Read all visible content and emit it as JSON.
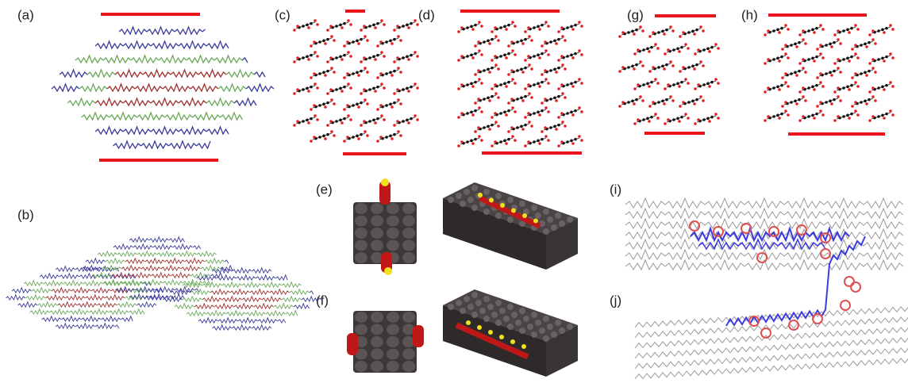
{
  "panels": [
    {
      "label": "(a)"
    },
    {
      "label": "(b)"
    },
    {
      "label": "(c)"
    },
    {
      "label": "(d)"
    },
    {
      "label": "(g)"
    },
    {
      "label": "(h)"
    },
    {
      "label": "(e)"
    },
    {
      "label": "(f)"
    },
    {
      "label": "(i)"
    },
    {
      "label": "(j)"
    }
  ]
}
